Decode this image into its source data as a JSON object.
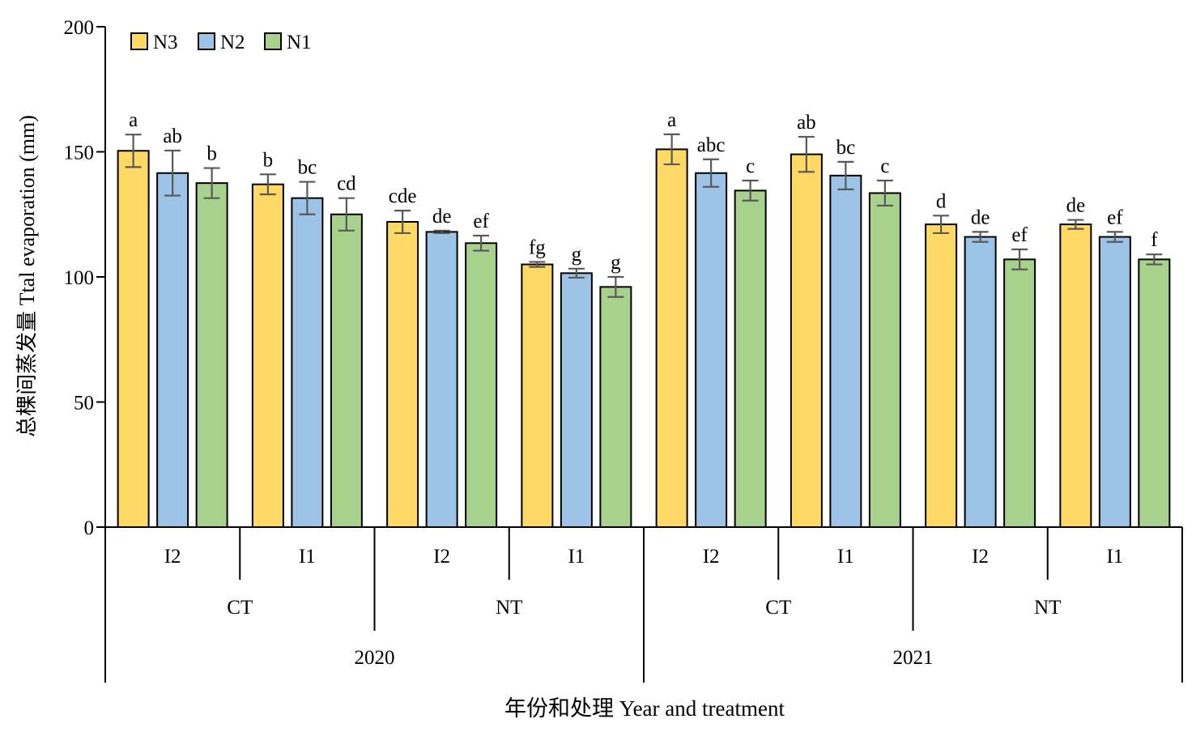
{
  "chart_data": {
    "type": "bar",
    "title": "",
    "ylabel": "总棵间蒸发量 Ttal evaporation (mm)",
    "xlabel": "年份和处理 Year and treatment",
    "ylim": [
      0,
      200
    ],
    "yticks": [
      "0",
      "50",
      "100",
      "150",
      "200"
    ],
    "legend_position": "top-left",
    "grid": false,
    "categories": [
      {
        "year": "2020",
        "tillage": "CT",
        "irrigation": "I2"
      },
      {
        "year": "2020",
        "tillage": "CT",
        "irrigation": "I1"
      },
      {
        "year": "2020",
        "tillage": "NT",
        "irrigation": "I2"
      },
      {
        "year": "2020",
        "tillage": "NT",
        "irrigation": "I1"
      },
      {
        "year": "2021",
        "tillage": "CT",
        "irrigation": "I2"
      },
      {
        "year": "2021",
        "tillage": "CT",
        "irrigation": "I1"
      },
      {
        "year": "2021",
        "tillage": "NT",
        "irrigation": "I2"
      },
      {
        "year": "2021",
        "tillage": "NT",
        "irrigation": "I1"
      }
    ],
    "series": [
      {
        "name": "N3",
        "color": "#FFD966",
        "values": [
          150.4,
          137.0,
          122.0,
          105.0,
          151.0,
          149.0,
          121.0,
          121.0
        ],
        "errors": [
          6.5,
          4.0,
          4.5,
          1.0,
          6.0,
          7.0,
          3.5,
          1.8
        ],
        "labels": [
          "a",
          "b",
          "cde",
          "fg",
          "a",
          "ab",
          "d",
          "de"
        ]
      },
      {
        "name": "N2",
        "color": "#9DC3E6",
        "values": [
          141.5,
          131.5,
          118.0,
          101.5,
          141.5,
          140.5,
          116.0,
          116.0
        ],
        "errors": [
          9.0,
          6.5,
          0.5,
          1.8,
          5.5,
          5.5,
          2.0,
          2.0
        ],
        "labels": [
          "ab",
          "bc",
          "de",
          "g",
          "abc",
          "bc",
          "de",
          "ef"
        ]
      },
      {
        "name": "N1",
        "color": "#A9D18E",
        "values": [
          137.5,
          125.0,
          113.5,
          96.0,
          134.5,
          133.5,
          107.0,
          107.0
        ],
        "errors": [
          6.0,
          6.5,
          3.0,
          4.0,
          4.0,
          5.0,
          4.0,
          2.0
        ],
        "labels": [
          "b",
          "cd",
          "ef",
          "g",
          "c",
          "c",
          "ef",
          "f"
        ]
      }
    ],
    "groups_level1": [
      "I2",
      "I1",
      "I2",
      "I1",
      "I2",
      "I1",
      "I2",
      "I1"
    ],
    "groups_level2": [
      "CT",
      "NT",
      "CT",
      "NT"
    ],
    "groups_level3": [
      "2020",
      "2021"
    ]
  }
}
